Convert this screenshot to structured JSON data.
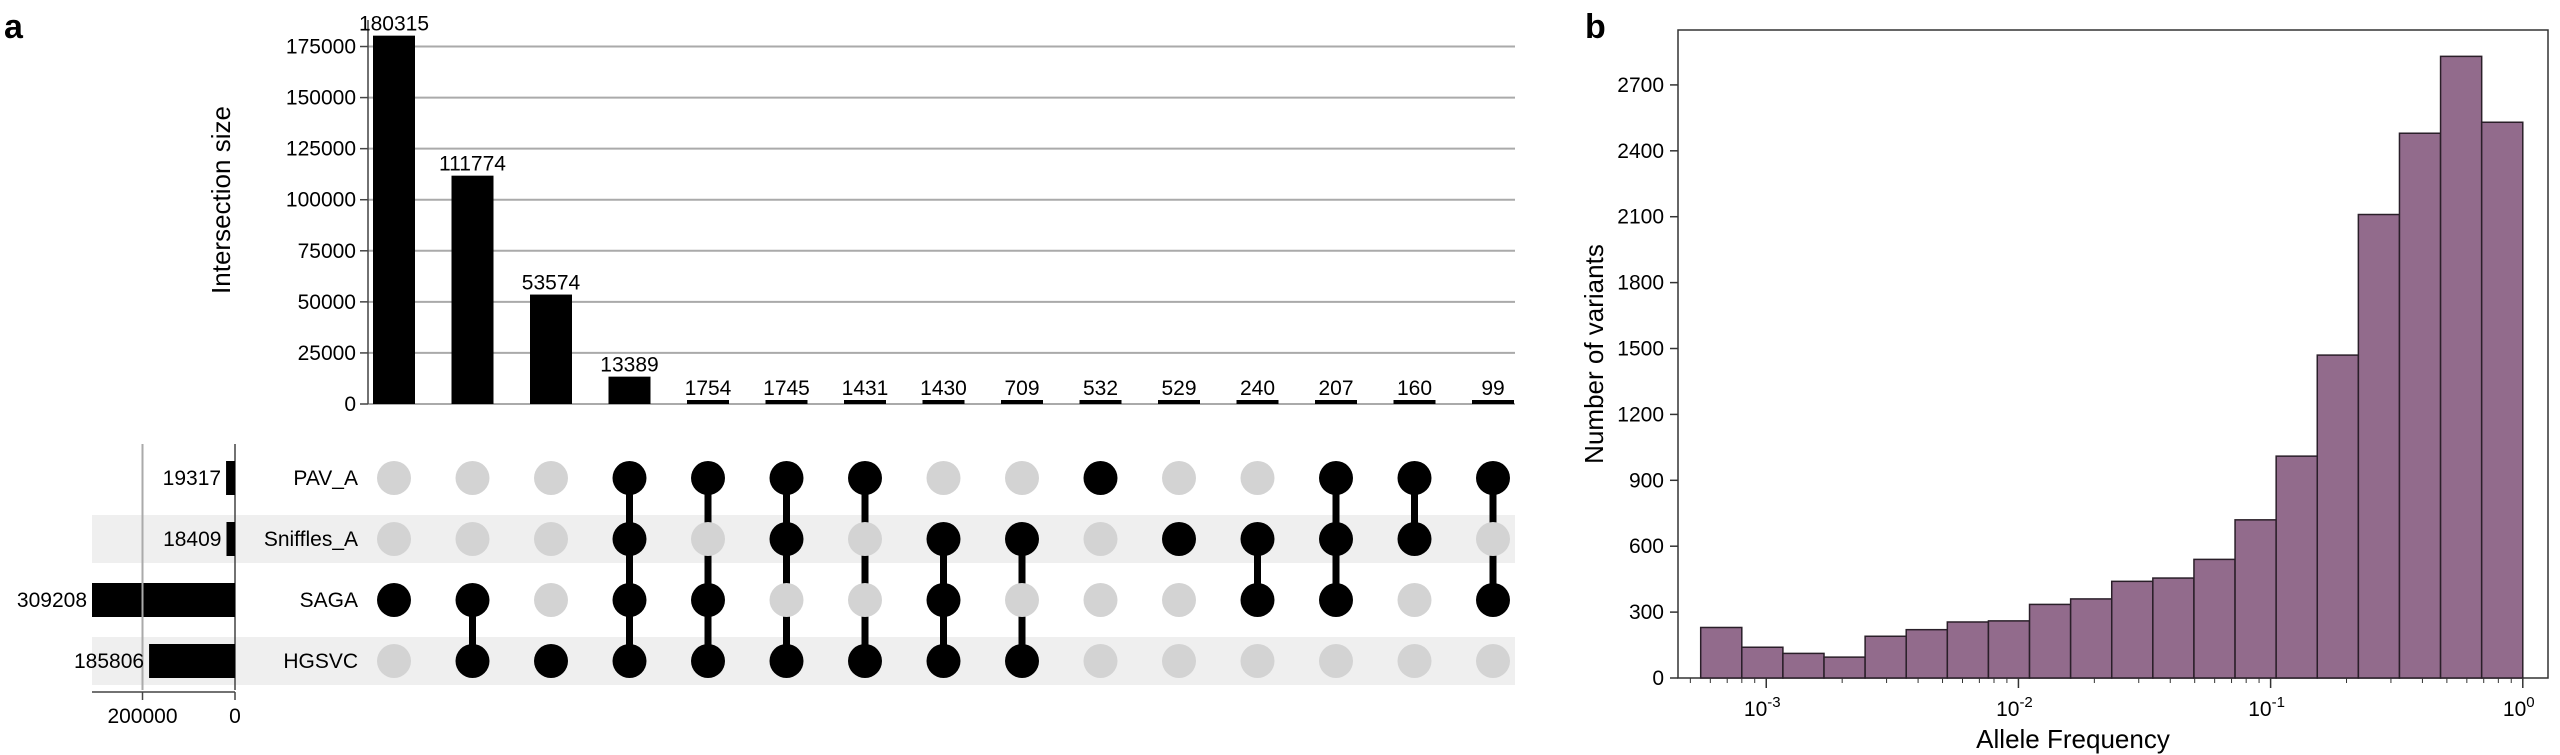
{
  "panel_a": {
    "letter": "a",
    "chart_data": {
      "type": "bar",
      "title": "",
      "ylabel": "Intersection size",
      "ylim": [
        0,
        187000
      ],
      "yticks": [
        0,
        25000,
        50000,
        75000,
        100000,
        125000,
        150000,
        175000
      ],
      "values": [
        180315,
        111774,
        53574,
        13389,
        1754,
        1745,
        1431,
        1430,
        709,
        532,
        529,
        240,
        207,
        160,
        99
      ],
      "value_labels": [
        "180315",
        "111774",
        "53574",
        "13389",
        "1754",
        "1745",
        "1431",
        "1430",
        "709",
        "532",
        "529",
        "240",
        "207",
        "160",
        "99"
      ],
      "sets": [
        "PAV_A",
        "Sniffles_A",
        "SAGA",
        "HGSVC"
      ],
      "set_sizes": [
        19317,
        18409,
        309208,
        185806
      ],
      "set_size_labels": [
        "19317",
        "18409",
        "309208",
        "185806"
      ],
      "set_size_ticks": [
        200000,
        0
      ],
      "set_size_tick_labels": [
        "200000",
        "0"
      ],
      "memberships": [
        [
          2
        ],
        [
          2,
          3
        ],
        [
          3
        ],
        [
          0,
          1,
          2,
          3
        ],
        [
          0,
          2,
          3
        ],
        [
          0,
          1,
          3
        ],
        [
          0,
          3
        ],
        [
          1,
          2,
          3
        ],
        [
          1,
          3
        ],
        [
          0
        ],
        [
          1
        ],
        [
          1,
          2
        ],
        [
          0,
          1,
          2
        ],
        [
          0,
          1
        ],
        [
          0,
          2
        ]
      ]
    }
  },
  "panel_b": {
    "letter": "b",
    "chart_data": {
      "type": "bar",
      "title": "",
      "xlabel": "Allele Frequency",
      "ylabel": "Number of variants",
      "xscale": "log",
      "xlim_log10": [
        -3.35,
        0.1
      ],
      "ylim": [
        0,
        2950
      ],
      "yticks": [
        0,
        300,
        600,
        900,
        1200,
        1500,
        1800,
        2100,
        2400,
        2700
      ],
      "xticks_base": "10",
      "xticks_exponents": [
        "-3",
        "-2",
        "-1",
        "0"
      ],
      "bin_width_log10": 0.163,
      "bin_start_log10": -3.26,
      "values": [
        230,
        140,
        112,
        95,
        190,
        220,
        255,
        260,
        335,
        360,
        440,
        455,
        540,
        720,
        1010,
        1470,
        2110,
        2480,
        2830,
        2530
      ],
      "bar_color": "#926b8c"
    }
  }
}
